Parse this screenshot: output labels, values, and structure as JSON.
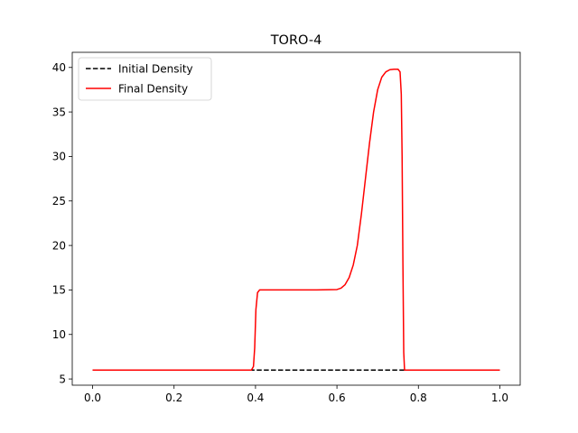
{
  "chart_data": {
    "type": "line",
    "title": "TORO-4",
    "xlabel": "",
    "ylabel": "",
    "xlim": [
      -0.05,
      1.05
    ],
    "ylim": [
      4.3,
      41.7
    ],
    "x_ticks": [
      0.0,
      0.2,
      0.4,
      0.6,
      0.8,
      1.0
    ],
    "x_tick_labels": [
      "0.0",
      "0.2",
      "0.4",
      "0.6",
      "0.8",
      "1.0"
    ],
    "y_ticks": [
      5,
      10,
      15,
      20,
      25,
      30,
      35,
      40
    ],
    "y_tick_labels": [
      "5",
      "10",
      "15",
      "20",
      "25",
      "30",
      "35",
      "40"
    ],
    "grid": false,
    "legend_position": "top-left",
    "series": [
      {
        "name": "Initial Density",
        "color": "#000000",
        "style": "dashed",
        "x": [
          0.0,
          1.0
        ],
        "y": [
          5.99924,
          5.99924
        ]
      },
      {
        "name": "Final Density",
        "color": "#ff0000",
        "style": "solid",
        "x": [
          0.0,
          0.39,
          0.395,
          0.398,
          0.401,
          0.405,
          0.41,
          0.45,
          0.5,
          0.55,
          0.6,
          0.61,
          0.62,
          0.63,
          0.64,
          0.65,
          0.66,
          0.67,
          0.68,
          0.69,
          0.7,
          0.71,
          0.72,
          0.73,
          0.74,
          0.75,
          0.755,
          0.758,
          0.76,
          0.762,
          0.764,
          0.766,
          0.8,
          0.9,
          1.0
        ],
        "y": [
          6.0,
          6.0,
          6.4,
          8.5,
          12.8,
          14.7,
          15.0,
          15.0,
          15.0,
          15.0,
          15.05,
          15.2,
          15.6,
          16.4,
          17.8,
          20.0,
          23.5,
          27.5,
          31.5,
          35.0,
          37.5,
          38.9,
          39.5,
          39.75,
          39.8,
          39.8,
          39.5,
          37.0,
          30.0,
          18.0,
          8.0,
          6.0,
          6.0,
          6.0,
          6.0
        ]
      }
    ]
  }
}
